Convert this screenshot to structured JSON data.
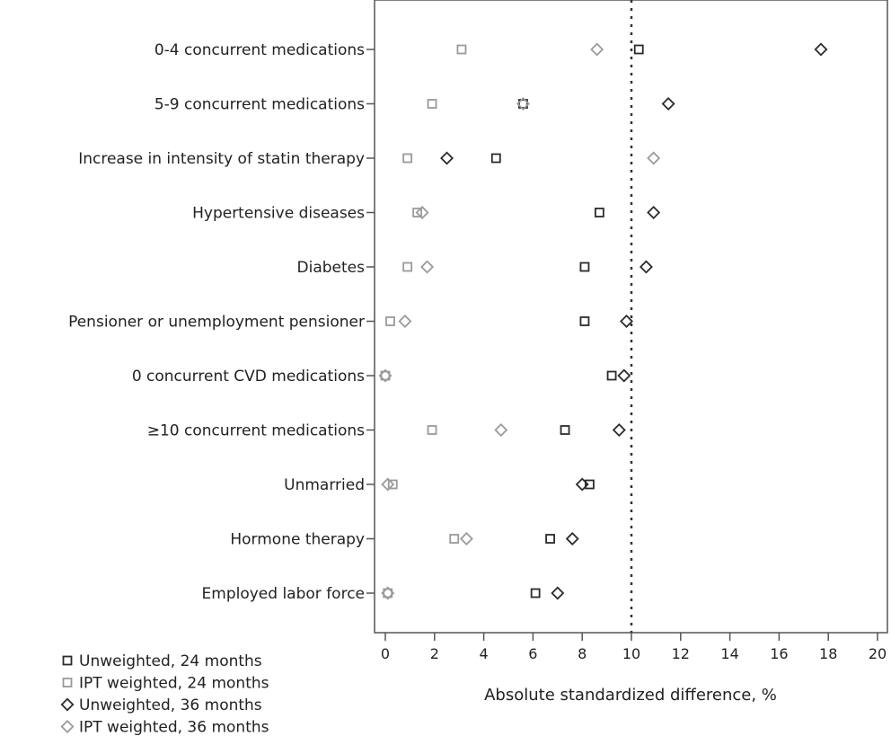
{
  "chart_data": {
    "type": "scatter",
    "title": "",
    "xlabel": "Absolute standardized difference, %",
    "ylabel": "",
    "xlim": [
      0,
      20
    ],
    "x_ticks": [
      0,
      2,
      4,
      6,
      8,
      10,
      12,
      14,
      16,
      18,
      20
    ],
    "x_tick_labels": [
      "0",
      "2",
      "4",
      "6",
      "8",
      "10",
      "12",
      "14",
      "16",
      "18",
      "20"
    ],
    "reference_line": {
      "x": 10,
      "style": "dotted"
    },
    "grid": false,
    "legend_position": "bottom-left",
    "categories": [
      "0-4 concurrent medications",
      "5-9 concurrent medications",
      "Increase in intensity of statin therapy",
      "Hypertensive diseases",
      "Diabetes",
      "Pensioner or unemployment pensioner",
      "0 concurrent CVD medications",
      "≥10 concurrent medications",
      "Unmarried",
      "Hormone therapy",
      "Employed labor force"
    ],
    "series": [
      {
        "name": "Unweighted, 24 months",
        "marker": "square",
        "color": "#2b2b2b",
        "values": [
          10.3,
          5.6,
          4.5,
          8.7,
          8.1,
          8.1,
          9.2,
          7.3,
          8.3,
          6.7,
          6.1
        ]
      },
      {
        "name": "IPT weighted, 24 months",
        "marker": "square",
        "color": "#9a9a9a",
        "values": [
          3.1,
          1.9,
          0.9,
          1.3,
          0.9,
          0.2,
          0.0,
          1.9,
          0.3,
          2.8,
          0.1
        ]
      },
      {
        "name": "Unweighted, 36 months",
        "marker": "diamond",
        "color": "#2b2b2b",
        "values": [
          17.7,
          11.5,
          2.5,
          10.9,
          10.6,
          9.8,
          9.7,
          9.5,
          8.0,
          7.6,
          7.0
        ]
      },
      {
        "name": "IPT weighted, 36 months",
        "marker": "diamond",
        "color": "#9a9a9a",
        "values": [
          8.6,
          5.6,
          10.9,
          1.5,
          1.7,
          0.8,
          0.0,
          4.7,
          0.1,
          3.3,
          0.1
        ]
      }
    ]
  }
}
